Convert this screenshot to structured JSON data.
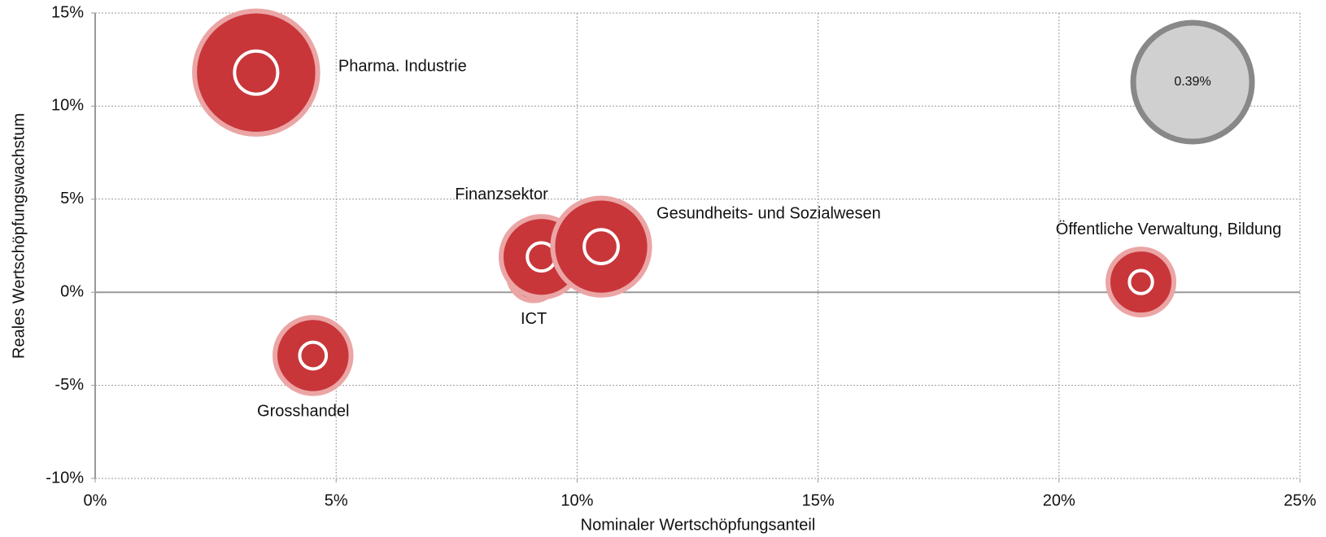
{
  "chart_data": {
    "type": "bubble",
    "xlabel": "Nominaler Wertschöpfungsanteil",
    "ylabel": "Reales  Wertschöpfungswachstum",
    "series": [
      {
        "color": "#c8363a",
        "names": [
          "Pharma. Industrie",
          "Grosshandel",
          "ICT",
          "Finanzsektor",
          "Gesundheits- und Sozialwesen",
          "Öffentliche Verwaltung, Bildung"
        ],
        "x": [
          3.34,
          4.52,
          9.1,
          9.26,
          10.5,
          21.7
        ],
        "values": [
          11.8,
          -3.4,
          0.9,
          1.9,
          2.45,
          0.55
        ],
        "sizes": [
          0.42,
          0.16,
          0.07,
          0.18,
          0.26,
          0.12
        ]
      }
    ],
    "size_legend": {
      "value": 0.39,
      "label": "0.39%"
    },
    "xlim": [
      0,
      25
    ],
    "xticks": [
      {
        "value": 0,
        "label": "0%"
      },
      {
        "value": 5,
        "label": "5%"
      },
      {
        "value": 10,
        "label": "10%"
      },
      {
        "value": 15,
        "label": "15%"
      },
      {
        "value": 20,
        "label": "20%"
      },
      {
        "value": 25,
        "label": "25%"
      }
    ],
    "ylim": [
      -10,
      15
    ],
    "yticks": [
      {
        "value": -10,
        "label": "-10%"
      },
      {
        "value": -5,
        "label": "-5%"
      },
      {
        "value": 0,
        "label": "0%"
      },
      {
        "value": 5,
        "label": "5%"
      },
      {
        "value": 10,
        "label": "10%"
      },
      {
        "value": 15,
        "label": "15%"
      }
    ],
    "grid": true
  }
}
